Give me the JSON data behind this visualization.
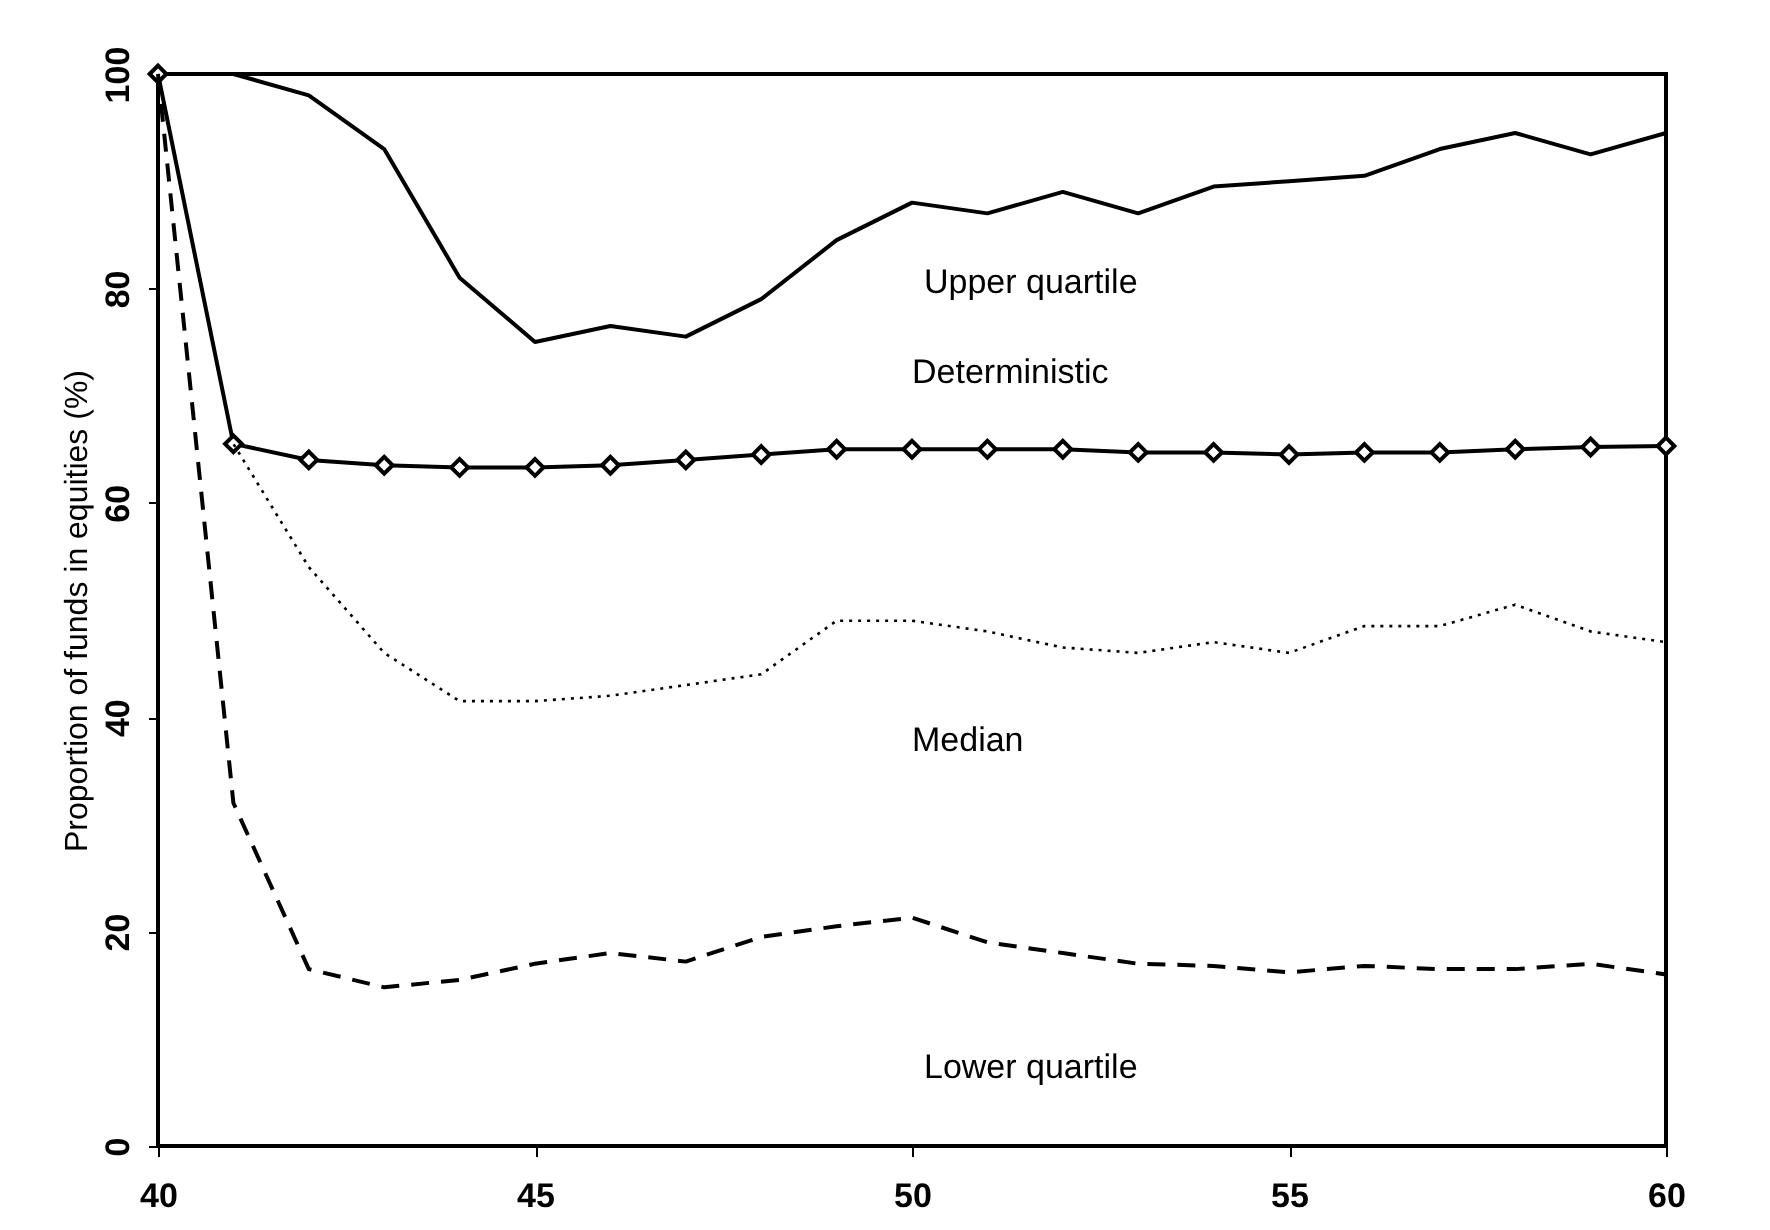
{
  "chart_data": {
    "type": "line",
    "ylabel": "Proportion of funds in equities (%)",
    "x": [
      40,
      41,
      42,
      43,
      44,
      45,
      46,
      47,
      48,
      49,
      50,
      51,
      52,
      53,
      54,
      55,
      56,
      57,
      58,
      59,
      60
    ],
    "xlim": [
      40,
      60
    ],
    "xticks": [
      40,
      45,
      50,
      55,
      60
    ],
    "ylim": [
      0,
      100
    ],
    "yticks": [
      0,
      20,
      40,
      60,
      80,
      100
    ],
    "grid": false,
    "legend": false,
    "series": [
      {
        "name": "Upper quartile",
        "color": "#000000",
        "line_style": "solid",
        "marker": "none",
        "values": [
          100,
          100,
          98,
          93,
          81,
          75,
          76.5,
          75.5,
          79,
          84.5,
          88,
          87,
          89,
          87,
          89.5,
          90,
          90.5,
          93,
          94.5,
          92.5,
          94.5
        ]
      },
      {
        "name": "Deterministic",
        "color": "#000000",
        "line_style": "solid",
        "marker": "diamond",
        "values": [
          100,
          65.5,
          64,
          63.5,
          63.3,
          63.3,
          63.5,
          64,
          64.5,
          65,
          65,
          65,
          65,
          64.7,
          64.7,
          64.5,
          64.7,
          64.7,
          65,
          65.2,
          65.3
        ]
      },
      {
        "name": "Median",
        "color": "#000000",
        "line_style": "dotted",
        "marker": "none",
        "values": [
          100,
          65.5,
          54,
          46,
          41.5,
          41.5,
          42,
          43,
          44,
          49,
          49,
          48,
          46.5,
          46,
          47,
          46,
          48.5,
          48.5,
          50.5,
          48,
          47
        ]
      },
      {
        "name": "Lower quartile",
        "color": "#000000",
        "line_style": "dashed",
        "marker": "none",
        "values": [
          100,
          32,
          16.5,
          14.8,
          15.5,
          17,
          18,
          17.2,
          19.5,
          20.5,
          21.3,
          19,
          18,
          17,
          16.8,
          16.2,
          16.8,
          16.5,
          16.5,
          17,
          16
        ]
      }
    ]
  }
}
